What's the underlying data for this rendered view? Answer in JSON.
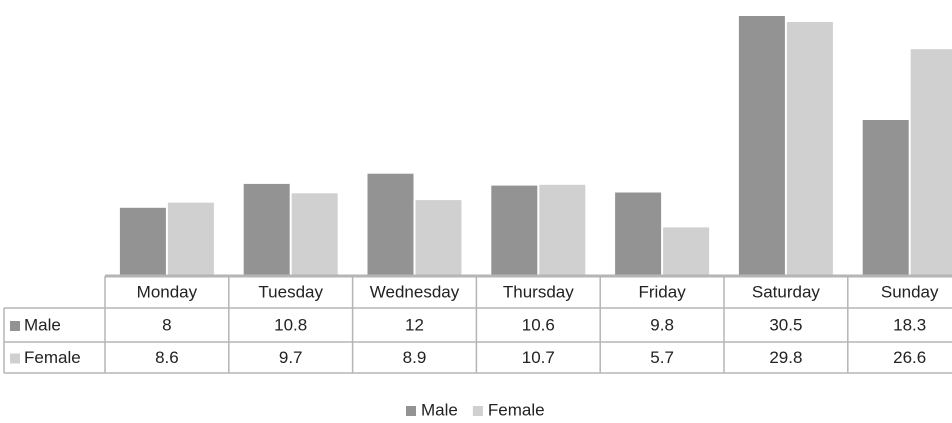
{
  "chart_data": {
    "type": "bar",
    "categories": [
      "Monday",
      "Tuesday",
      "Wednesday",
      "Thursday",
      "Friday",
      "Saturday",
      "Sunday"
    ],
    "series": [
      {
        "name": "Male",
        "values": [
          8,
          10.8,
          12,
          10.6,
          9.8,
          30.5,
          18.3
        ],
        "color": "#939393"
      },
      {
        "name": "Female",
        "values": [
          8.6,
          9.7,
          8.9,
          10.7,
          5.7,
          29.8,
          26.6
        ],
        "color": "#d0d0d0"
      }
    ],
    "display_values": {
      "Male": [
        "8",
        "10.8",
        "12",
        "10.6",
        "9.8",
        "30.5",
        "18.3"
      ],
      "Female": [
        "8.6",
        "9.7",
        "8.9",
        "10.7",
        "5.7",
        "29.8",
        "26.6"
      ]
    },
    "ylim": [
      0,
      30.5
    ],
    "grid": false,
    "data_table": true,
    "legend_position": "bottom",
    "title": "",
    "xlabel": "",
    "ylabel": ""
  }
}
